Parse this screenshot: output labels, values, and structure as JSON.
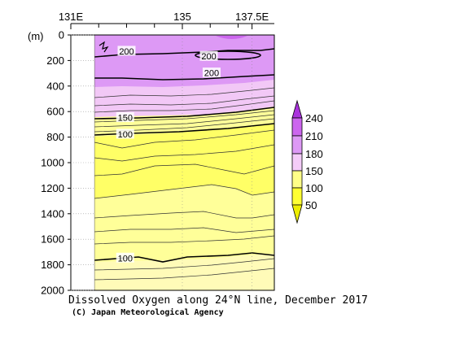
{
  "chart_data": {
    "type": "heatmap",
    "title": "Dissolved Oxygen along 24°N line, December 2017",
    "credit": "(C) Japan Meteorological Agency",
    "y_unit_label": "(m)",
    "x_ticks": [
      {
        "value": 131,
        "label": "131E"
      },
      {
        "value": 135,
        "label": "135"
      },
      {
        "value": 137.5,
        "label": "137.5E"
      }
    ],
    "x_minor_ticks": [
      132,
      133,
      134,
      136,
      137
    ],
    "xlim": [
      131,
      138.3
    ],
    "ylim": [
      0,
      2000
    ],
    "y_ticks": [
      0,
      200,
      400,
      600,
      800,
      1000,
      1200,
      1400,
      1600,
      1800,
      2000
    ],
    "data_start_x": 131.85,
    "levels": [
      {
        "min": 210,
        "max": 240,
        "color": "#cc66ee"
      },
      {
        "min": 180,
        "max": 210,
        "color": "#dd99f5"
      },
      {
        "min": 150,
        "max": 180,
        "color": "#f4ccf8"
      },
      {
        "min": 100,
        "max": 150,
        "color": "#ffff88"
      },
      {
        "min": 50,
        "max": 100,
        "color": "#ffff33"
      }
    ],
    "colorbar_labels": [
      "240",
      "210",
      "180",
      "150",
      "100",
      "50"
    ],
    "contour_labels": [
      {
        "text": "200",
        "x": 133.0,
        "y": 130
      },
      {
        "text": "200",
        "x": 135.95,
        "y": 170
      },
      {
        "text": "200",
        "x": 136.05,
        "y": 300
      },
      {
        "text": "150",
        "x": 132.95,
        "y": 650
      },
      {
        "text": "100",
        "x": 132.95,
        "y": 780
      },
      {
        "text": "100",
        "x": 132.95,
        "y": 1750
      }
    ]
  }
}
